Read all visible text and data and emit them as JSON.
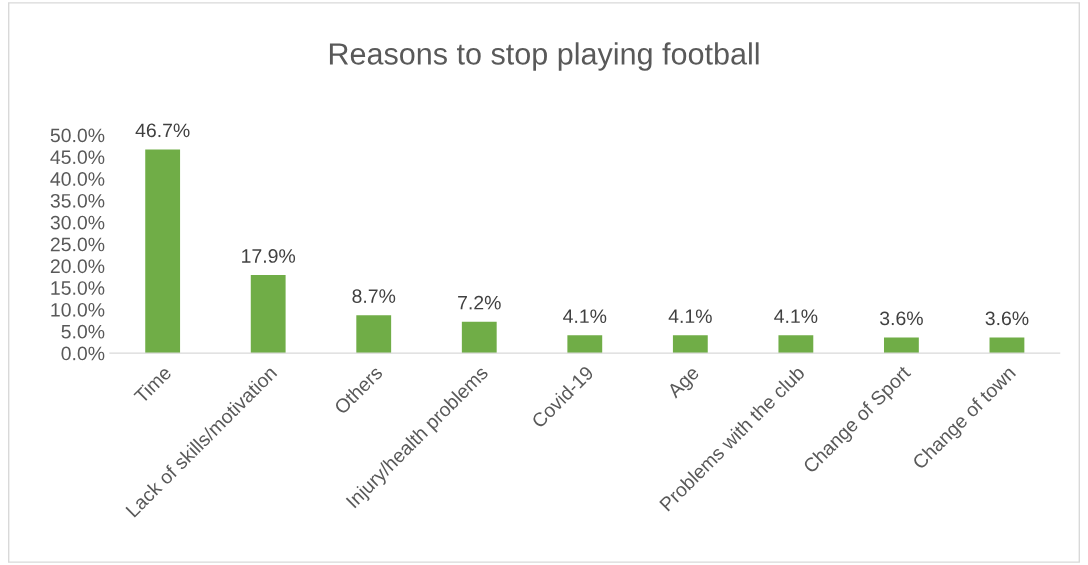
{
  "chart_data": {
    "type": "bar",
    "title": "Reasons to stop playing football",
    "categories": [
      "Time",
      "Lack of skills/motivation",
      "Others",
      "Injury/health problems",
      "Covid-19",
      "Age",
      "Problems with the club",
      "Change of Sport",
      "Change of town"
    ],
    "values": [
      46.7,
      17.9,
      8.7,
      7.2,
      4.1,
      4.1,
      4.1,
      3.6,
      3.6
    ],
    "value_labels": [
      "46.7%",
      "17.9%",
      "8.7%",
      "7.2%",
      "4.1%",
      "4.1%",
      "4.1%",
      "3.6%",
      "3.6%"
    ],
    "color": "#70ad47",
    "ylim": [
      0,
      50
    ],
    "yticks": [
      {
        "value": 0,
        "label": "0.0%"
      },
      {
        "value": 5,
        "label": "5.0%"
      },
      {
        "value": 10,
        "label": "10.0%"
      },
      {
        "value": 15,
        "label": "15.0%"
      },
      {
        "value": 20,
        "label": "20.0%"
      },
      {
        "value": 25,
        "label": "25.0%"
      },
      {
        "value": 30,
        "label": "30.0%"
      },
      {
        "value": 35,
        "label": "35.0%"
      },
      {
        "value": 40,
        "label": "40.0%"
      },
      {
        "value": 45,
        "label": "45.0%"
      },
      {
        "value": 50,
        "label": "50.0%"
      }
    ],
    "grid": false,
    "legend": false
  }
}
